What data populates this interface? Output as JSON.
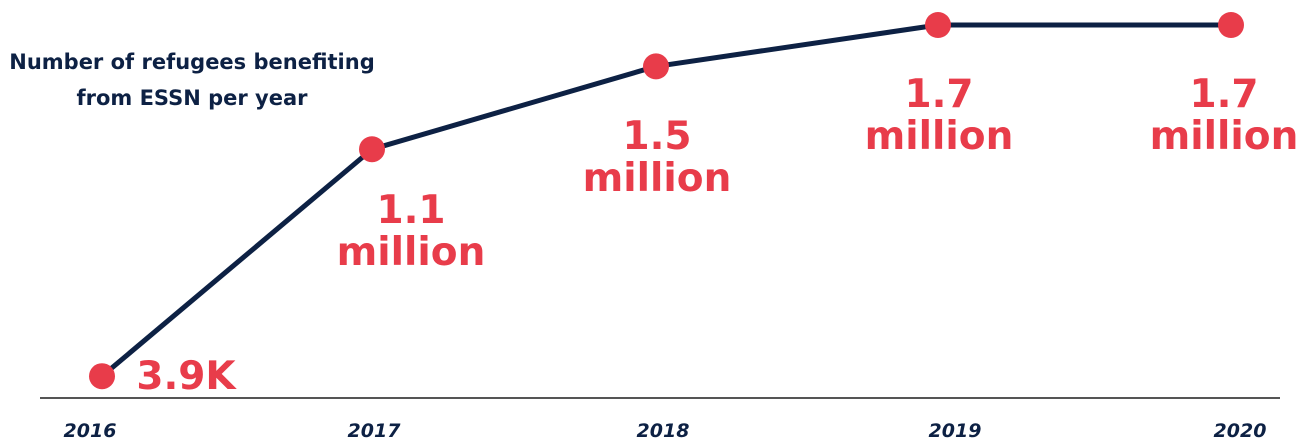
{
  "chart_data": {
    "type": "line",
    "title": "Number of refugees benefiting from ESSN per year",
    "x": [
      "2016",
      "2017",
      "2018",
      "2019",
      "2020"
    ],
    "series": [
      {
        "values": [
          3900,
          1100000,
          1500000,
          1700000,
          1700000
        ]
      }
    ],
    "data_labels": [
      "3.9K",
      "1.1 million",
      "1.5 million",
      "1.7 million",
      "1.7 million"
    ],
    "data_label_lines": [
      [
        "3.9K"
      ],
      [
        "1.1",
        "million"
      ],
      [
        "1.5",
        "million"
      ],
      [
        "1.7",
        "million"
      ],
      [
        "1.7",
        "million"
      ]
    ],
    "xlabel": "",
    "ylabel": "",
    "ylim": [
      0,
      1700000
    ],
    "grid": false,
    "legend": "none",
    "colors": {
      "line": "#0d2144",
      "markers": "#e83c4a",
      "labels": "#e83c4a",
      "title": "#0d2144",
      "axis": "#555555"
    }
  }
}
